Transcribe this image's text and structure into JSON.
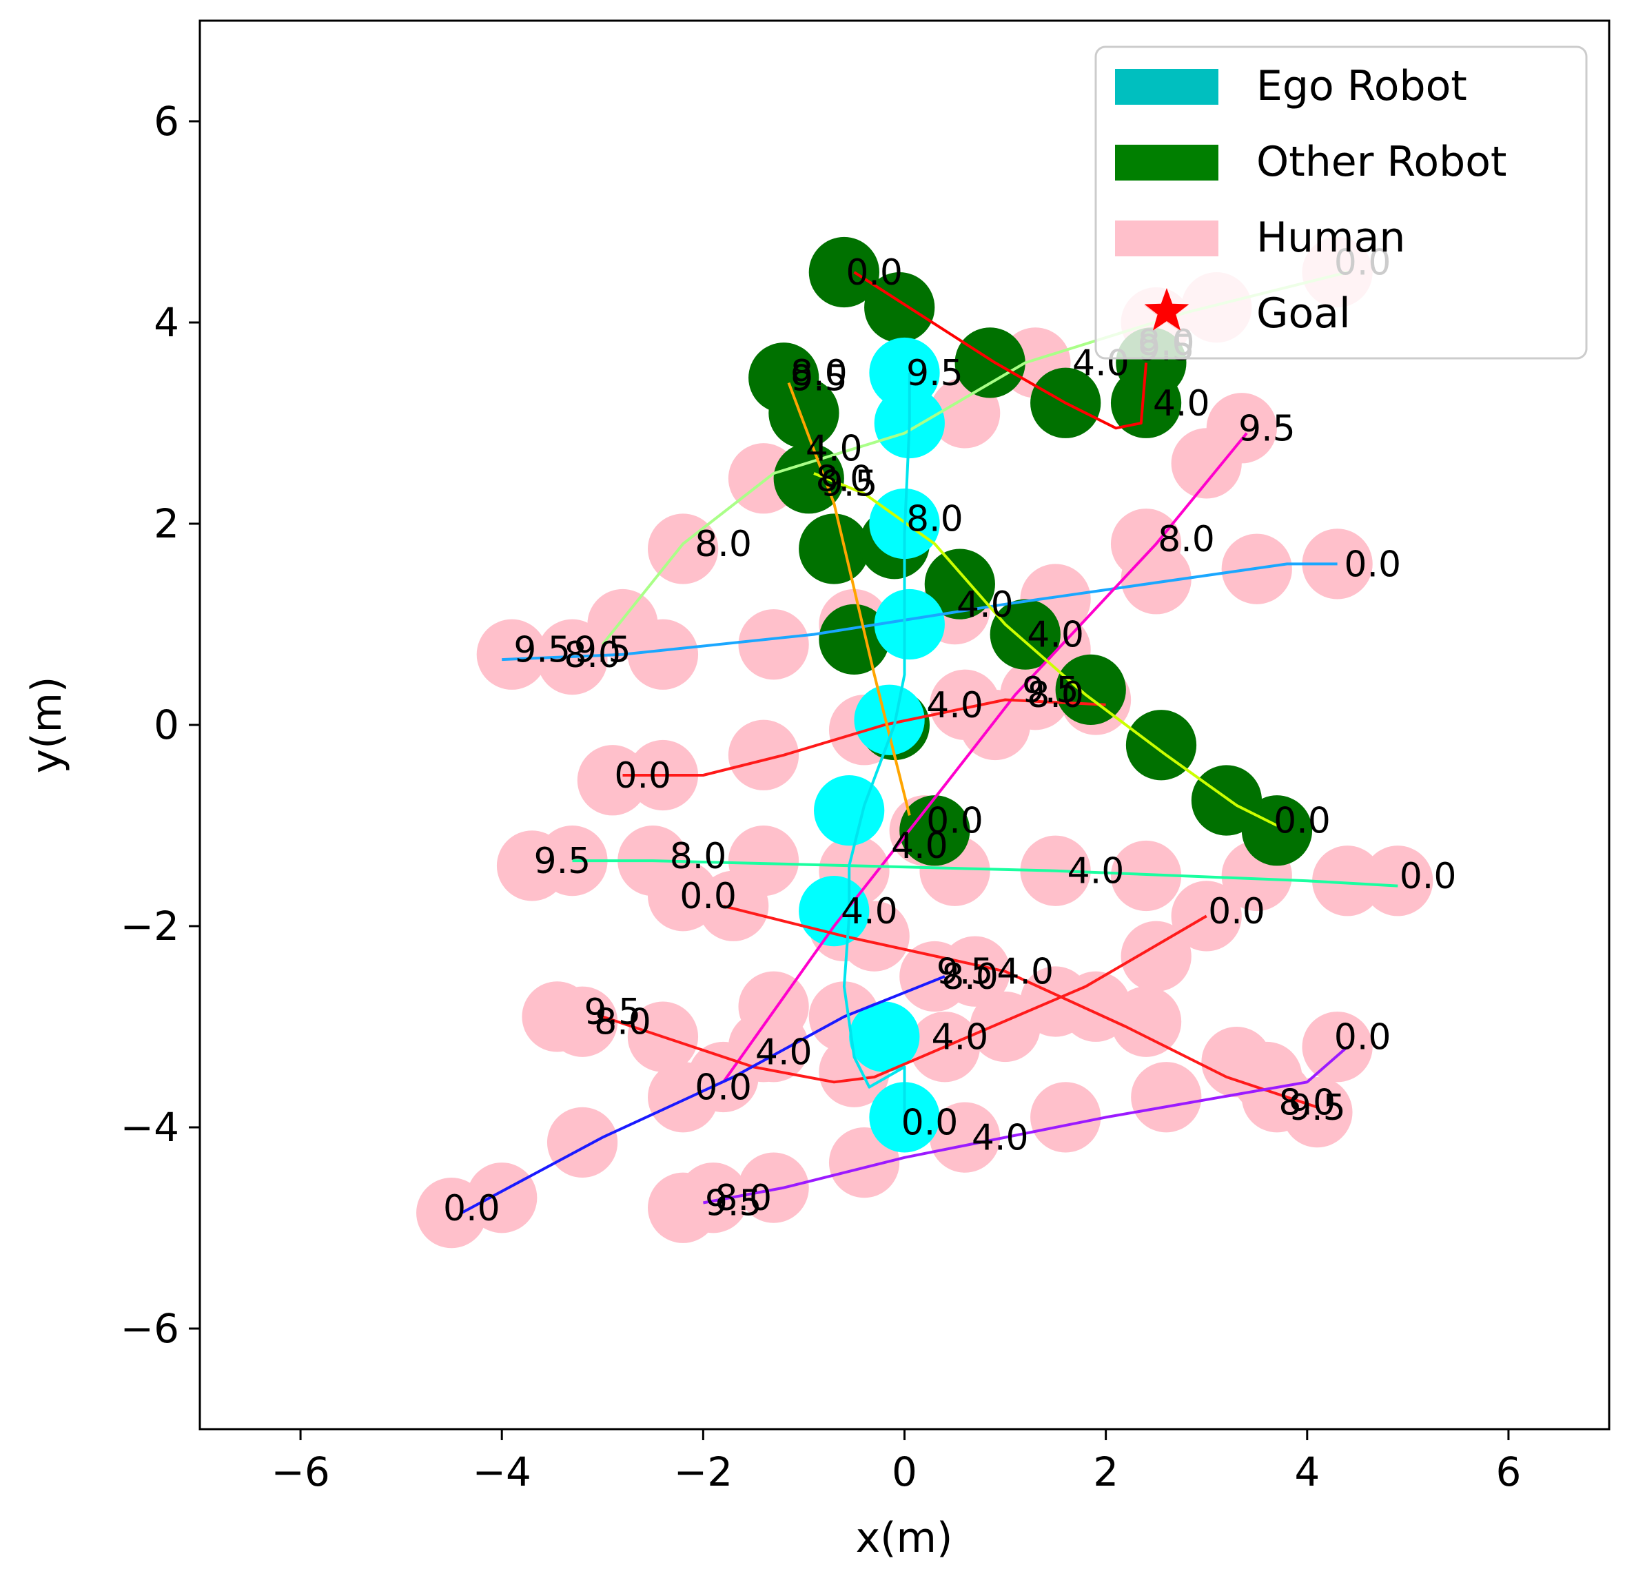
{
  "chart_data": {
    "type": "scatter",
    "title": "",
    "xlabel": "x(m)",
    "ylabel": "y(m)",
    "xlim": [
      -7,
      7
    ],
    "ylim": [
      -7,
      7
    ],
    "xticks": [
      -6,
      -4,
      -2,
      0,
      2,
      4,
      6
    ],
    "yticks": [
      -6,
      -4,
      -2,
      0,
      2,
      4,
      6
    ],
    "xtick_labels": [
      "−6",
      "−4",
      "−2",
      "0",
      "2",
      "4",
      "6"
    ],
    "ytick_labels": [
      "−6",
      "−4",
      "−2",
      "0",
      "2",
      "4",
      "6"
    ],
    "grid": false,
    "legend": {
      "location": "top-right",
      "entries": [
        {
          "label": "Ego Robot",
          "marker": "patch",
          "color": "#00bfbf"
        },
        {
          "label": "Other Robot",
          "marker": "patch",
          "color": "#007f00"
        },
        {
          "label": "Human",
          "marker": "patch",
          "color": "#ffc0cb"
        },
        {
          "label": "Goal",
          "marker": "star",
          "color": "#ff0000"
        }
      ]
    },
    "colors": {
      "ego_disc": "#00ffff",
      "ego_path": "#00e5ee",
      "other_disc": "#007100",
      "human_disc": "#ffc0cb",
      "goal": "#ff0000"
    },
    "goal": [
      2.6,
      4.1
    ],
    "disc_radius": 0.35,
    "ego": {
      "path": [
        [
          0,
          -3.9
        ],
        [
          0,
          -3.4
        ],
        [
          -0.35,
          -3.6
        ],
        [
          -0.5,
          -3.3
        ],
        [
          -0.6,
          -2.6
        ],
        [
          -0.55,
          -1.9
        ],
        [
          -0.55,
          -1.4
        ],
        [
          -0.4,
          -0.8
        ],
        [
          -0.1,
          0.0
        ],
        [
          0,
          0.5
        ],
        [
          0,
          1.0
        ],
        [
          0,
          1.9
        ],
        [
          0.05,
          3.0
        ],
        [
          0.05,
          3.5
        ]
      ],
      "discs": [
        [
          0,
          -3.9
        ],
        [
          -0.2,
          -3.1
        ],
        [
          -0.7,
          -1.85
        ],
        [
          -0.55,
          -0.85
        ],
        [
          -0.15,
          0.05
        ],
        [
          0.05,
          1.0
        ],
        [
          0.0,
          2.0
        ],
        [
          0.05,
          3.0
        ],
        [
          0.0,
          3.5
        ]
      ],
      "labels": [
        {
          "text": "0.0",
          "x": 0.25,
          "y": -3.95
        },
        {
          "text": "4.0",
          "x": -0.35,
          "y": -1.85
        },
        {
          "text": "8.0",
          "x": 0.3,
          "y": 2.05
        },
        {
          "text": "9.5",
          "x": 0.3,
          "y": 3.5
        }
      ]
    },
    "other_robots": [
      {
        "color": "#ff0000",
        "path": [
          [
            -0.5,
            4.5
          ],
          [
            0.9,
            3.6
          ],
          [
            1.6,
            3.2
          ],
          [
            2.1,
            2.95
          ],
          [
            2.35,
            3.0
          ],
          [
            2.4,
            3.6
          ]
        ],
        "discs": [
          [
            -0.6,
            4.5
          ],
          [
            -0.05,
            4.15
          ],
          [
            0.85,
            3.6
          ],
          [
            1.6,
            3.2
          ],
          [
            2.4,
            3.2
          ],
          [
            2.45,
            3.6
          ]
        ],
        "labels": [
          {
            "text": "0.0",
            "x": -0.3,
            "y": 4.5
          },
          {
            "text": "4.0",
            "x": 2.75,
            "y": 3.2
          },
          {
            "text": "8.0",
            "x": 2.6,
            "y": 3.8
          },
          {
            "text": "9.5",
            "x": 2.6,
            "y": 3.75
          }
        ]
      },
      {
        "color": "#ffa500",
        "path": [
          [
            0.05,
            -0.9
          ],
          [
            -0.3,
            0.5
          ],
          [
            -0.7,
            2.2
          ],
          [
            -1.15,
            3.4
          ]
        ],
        "discs": [
          [
            0.3,
            -1.05
          ],
          [
            -0.1,
            0.0
          ],
          [
            -0.5,
            0.85
          ],
          [
            -0.7,
            1.75
          ],
          [
            -1.0,
            3.1
          ],
          [
            -1.2,
            3.45
          ]
        ],
        "labels": [
          {
            "text": "0.0",
            "x": 0.5,
            "y": -0.95
          },
          {
            "text": "4.0",
            "x": -0.7,
            "y": 2.75
          },
          {
            "text": "8.0",
            "x": -0.85,
            "y": 3.5
          },
          {
            "text": "9.5",
            "x": -0.85,
            "y": 3.45
          }
        ]
      },
      {
        "color": "#ccff00",
        "path": [
          [
            3.7,
            -1.0
          ],
          [
            3.3,
            -0.8
          ],
          [
            2.6,
            -0.3
          ],
          [
            1.8,
            0.3
          ],
          [
            1.0,
            1.0
          ],
          [
            0.3,
            1.8
          ],
          [
            -0.4,
            2.3
          ],
          [
            -0.9,
            2.5
          ]
        ],
        "discs": [
          [
            3.7,
            -1.05
          ],
          [
            3.2,
            -0.75
          ],
          [
            2.55,
            -0.2
          ],
          [
            1.85,
            0.35
          ],
          [
            1.2,
            0.9
          ],
          [
            0.55,
            1.4
          ],
          [
            -0.1,
            1.8
          ],
          [
            -0.95,
            2.45
          ]
        ],
        "labels": [
          {
            "text": "0.0",
            "x": 3.95,
            "y": -0.95
          },
          {
            "text": "4.0",
            "x": 1.5,
            "y": 0.9
          },
          {
            "text": "8.0",
            "x": -0.6,
            "y": 2.45
          },
          {
            "text": "9.5",
            "x": -0.55,
            "y": 2.4
          }
        ]
      }
    ],
    "humans": [
      {
        "color": "#aaff88",
        "path": [
          [
            -3.0,
            0.8
          ],
          [
            -2.2,
            1.8
          ],
          [
            -1.3,
            2.5
          ],
          [
            0.0,
            2.9
          ],
          [
            1.2,
            3.6
          ],
          [
            2.8,
            4.1
          ],
          [
            4.4,
            4.5
          ]
        ],
        "discs": [
          [
            -3.3,
            0.7
          ],
          [
            -2.8,
            1.0
          ],
          [
            -2.2,
            1.75
          ],
          [
            -1.4,
            2.45
          ],
          [
            0.6,
            3.1
          ],
          [
            1.3,
            3.6
          ],
          [
            2.5,
            4.0
          ],
          [
            3.1,
            4.15
          ],
          [
            4.3,
            4.5
          ]
        ],
        "labels": [
          {
            "text": "0.0",
            "x": 4.55,
            "y": 4.6
          },
          {
            "text": "4.0",
            "x": 1.95,
            "y": 3.6
          },
          {
            "text": "8.0",
            "x": -1.8,
            "y": 1.8
          },
          {
            "text": "9.5",
            "x": -3.0,
            "y": 0.75
          }
        ]
      },
      {
        "color": "#1aa7ff",
        "path": [
          [
            4.3,
            1.6
          ],
          [
            3.8,
            1.6
          ],
          [
            1.0,
            1.2
          ],
          [
            -0.9,
            0.9
          ],
          [
            -2.8,
            0.7
          ],
          [
            -4.0,
            0.65
          ]
        ],
        "discs": [
          [
            4.3,
            1.6
          ],
          [
            3.5,
            1.55
          ],
          [
            2.5,
            1.45
          ],
          [
            1.5,
            1.25
          ],
          [
            0.5,
            1.15
          ],
          [
            -0.5,
            1.0
          ],
          [
            -1.3,
            0.8
          ],
          [
            -2.4,
            0.7
          ],
          [
            -3.3,
            0.65
          ],
          [
            -3.9,
            0.7
          ]
        ],
        "labels": [
          {
            "text": "0.0",
            "x": 4.65,
            "y": 1.6
          },
          {
            "text": "4.0",
            "x": 0.8,
            "y": 1.2
          },
          {
            "text": "8.0",
            "x": -3.1,
            "y": 0.7
          },
          {
            "text": "9.5",
            "x": -3.6,
            "y": 0.75
          }
        ]
      },
      {
        "color": "#ff00cc",
        "path": [
          [
            -1.8,
            -3.55
          ],
          [
            -0.7,
            -2.0
          ],
          [
            0.4,
            -0.6
          ],
          [
            1.1,
            0.3
          ],
          [
            2.5,
            1.8
          ],
          [
            3.4,
            2.9
          ]
        ],
        "discs": [
          [
            -1.8,
            -3.5
          ],
          [
            -1.3,
            -2.8
          ],
          [
            -0.6,
            -2.0
          ],
          [
            0.2,
            -1.05
          ],
          [
            0.9,
            0.0
          ],
          [
            1.5,
            0.75
          ],
          [
            2.4,
            1.8
          ],
          [
            3.0,
            2.6
          ],
          [
            3.35,
            2.95
          ]
        ],
        "labels": [
          {
            "text": "0.0",
            "x": -1.8,
            "y": -3.6
          },
          {
            "text": "4.0",
            "x": 0.15,
            "y": -1.2
          },
          {
            "text": "8.0",
            "x": 2.8,
            "y": 1.85
          },
          {
            "text": "9.5",
            "x": 3.6,
            "y": 2.95
          }
        ]
      },
      {
        "color": "#ff1a1a",
        "path": [
          [
            -2.8,
            -0.5
          ],
          [
            -2.0,
            -0.5
          ],
          [
            -1.2,
            -0.3
          ],
          [
            -0.2,
            0.0
          ],
          [
            1.0,
            0.25
          ],
          [
            2.0,
            0.2
          ]
        ],
        "discs": [
          [
            -2.9,
            -0.55
          ],
          [
            -2.4,
            -0.5
          ],
          [
            -1.4,
            -0.3
          ],
          [
            -0.4,
            -0.05
          ],
          [
            0.6,
            0.2
          ],
          [
            1.3,
            0.3
          ],
          [
            1.9,
            0.25
          ]
        ],
        "labels": [
          {
            "text": "0.0",
            "x": -2.6,
            "y": -0.5
          },
          {
            "text": "4.0",
            "x": 0.5,
            "y": 0.2
          },
          {
            "text": "8.0",
            "x": 1.5,
            "y": 0.3
          },
          {
            "text": "9.5",
            "x": 1.45,
            "y": 0.35
          }
        ]
      },
      {
        "color": "#1affa0",
        "path": [
          [
            4.9,
            -1.6
          ],
          [
            4.0,
            -1.55
          ],
          [
            1.5,
            -1.45
          ],
          [
            -0.5,
            -1.4
          ],
          [
            -2.5,
            -1.35
          ],
          [
            -3.3,
            -1.35
          ]
        ],
        "discs": [
          [
            4.9,
            -1.55
          ],
          [
            4.4,
            -1.55
          ],
          [
            3.5,
            -1.5
          ],
          [
            2.4,
            -1.5
          ],
          [
            1.5,
            -1.45
          ],
          [
            0.5,
            -1.45
          ],
          [
            -0.5,
            -1.45
          ],
          [
            -1.4,
            -1.35
          ],
          [
            -2.5,
            -1.35
          ],
          [
            -3.3,
            -1.35
          ],
          [
            -3.7,
            -1.4
          ]
        ],
        "labels": [
          {
            "text": "0.0",
            "x": 5.2,
            "y": -1.5
          },
          {
            "text": "4.0",
            "x": 1.9,
            "y": -1.45
          },
          {
            "text": "8.0",
            "x": -2.05,
            "y": -1.3
          },
          {
            "text": "9.5",
            "x": -3.4,
            "y": -1.35
          }
        ]
      },
      {
        "color": "#ff1a1a",
        "path": [
          [
            -1.8,
            -1.8
          ],
          [
            -0.6,
            -2.1
          ],
          [
            1.0,
            -2.45
          ],
          [
            2.2,
            -3.0
          ],
          [
            3.2,
            -3.5
          ],
          [
            4.1,
            -3.8
          ]
        ],
        "discs": [
          [
            -2.2,
            -1.7
          ],
          [
            -1.7,
            -1.8
          ],
          [
            -0.3,
            -2.1
          ],
          [
            0.7,
            -2.45
          ],
          [
            1.5,
            -2.75
          ],
          [
            2.4,
            -2.95
          ],
          [
            3.3,
            -3.35
          ],
          [
            3.7,
            -3.7
          ],
          [
            4.1,
            -3.85
          ]
        ],
        "labels": [
          {
            "text": "0.0",
            "x": -1.95,
            "y": -1.7
          },
          {
            "text": "4.0",
            "x": 1.2,
            "y": -2.45
          },
          {
            "text": "8.0",
            "x": 4.0,
            "y": -3.75
          },
          {
            "text": "9.5",
            "x": 4.1,
            "y": -3.8
          }
        ]
      },
      {
        "color": "#ff1a1a",
        "path": [
          [
            3.0,
            -1.9
          ],
          [
            1.8,
            -2.6
          ],
          [
            0.4,
            -3.2
          ],
          [
            -0.3,
            -3.5
          ],
          [
            -0.7,
            -3.55
          ],
          [
            -1.5,
            -3.4
          ],
          [
            -3.0,
            -2.9
          ]
        ],
        "discs": [
          [
            3.0,
            -1.9
          ],
          [
            2.5,
            -2.3
          ],
          [
            1.9,
            -2.8
          ],
          [
            1.0,
            -3.0
          ],
          [
            0.4,
            -3.2
          ],
          [
            -0.5,
            -3.45
          ],
          [
            -1.4,
            -3.2
          ],
          [
            -2.4,
            -3.1
          ],
          [
            -3.2,
            -2.95
          ],
          [
            -3.45,
            -2.9
          ]
        ],
        "labels": [
          {
            "text": "0.0",
            "x": 3.3,
            "y": -1.85
          },
          {
            "text": "4.0",
            "x": 0.55,
            "y": -3.1
          },
          {
            "text": "8.0",
            "x": -2.8,
            "y": -2.95
          },
          {
            "text": "9.5",
            "x": -2.9,
            "y": -2.85
          }
        ]
      },
      {
        "color": "#1a1aff",
        "path": [
          [
            -4.4,
            -4.85
          ],
          [
            -3.0,
            -4.1
          ],
          [
            -1.7,
            -3.5
          ],
          [
            -0.6,
            -2.9
          ],
          [
            0.4,
            -2.5
          ]
        ],
        "discs": [
          [
            -4.5,
            -4.85
          ],
          [
            -4.0,
            -4.7
          ],
          [
            -3.2,
            -4.15
          ],
          [
            -2.2,
            -3.7
          ],
          [
            -1.3,
            -3.2
          ],
          [
            -0.6,
            -2.9
          ],
          [
            0.3,
            -2.5
          ]
        ],
        "labels": [
          {
            "text": "0.0",
            "x": -4.3,
            "y": -4.8
          },
          {
            "text": "4.0",
            "x": -1.2,
            "y": -3.25
          },
          {
            "text": "8.0",
            "x": 0.65,
            "y": -2.5
          },
          {
            "text": "9.5",
            "x": 0.6,
            "y": -2.45
          }
        ]
      },
      {
        "color": "#9b1aff",
        "path": [
          [
            4.4,
            -3.2
          ],
          [
            4.0,
            -3.55
          ],
          [
            2.0,
            -3.9
          ],
          [
            0.0,
            -4.3
          ],
          [
            -1.2,
            -4.6
          ],
          [
            -2.0,
            -4.75
          ]
        ],
        "discs": [
          [
            4.3,
            -3.2
          ],
          [
            3.6,
            -3.5
          ],
          [
            2.6,
            -3.7
          ],
          [
            1.6,
            -3.9
          ],
          [
            0.6,
            -4.1
          ],
          [
            -0.4,
            -4.35
          ],
          [
            -1.3,
            -4.6
          ],
          [
            -1.9,
            -4.7
          ],
          [
            -2.2,
            -4.8
          ]
        ],
        "labels": [
          {
            "text": "0.0",
            "x": 4.55,
            "y": -3.1
          },
          {
            "text": "4.0",
            "x": 0.95,
            "y": -4.1
          },
          {
            "text": "8.0",
            "x": -1.6,
            "y": -4.7
          },
          {
            "text": "9.5",
            "x": -1.7,
            "y": -4.75
          }
        ]
      }
    ]
  }
}
